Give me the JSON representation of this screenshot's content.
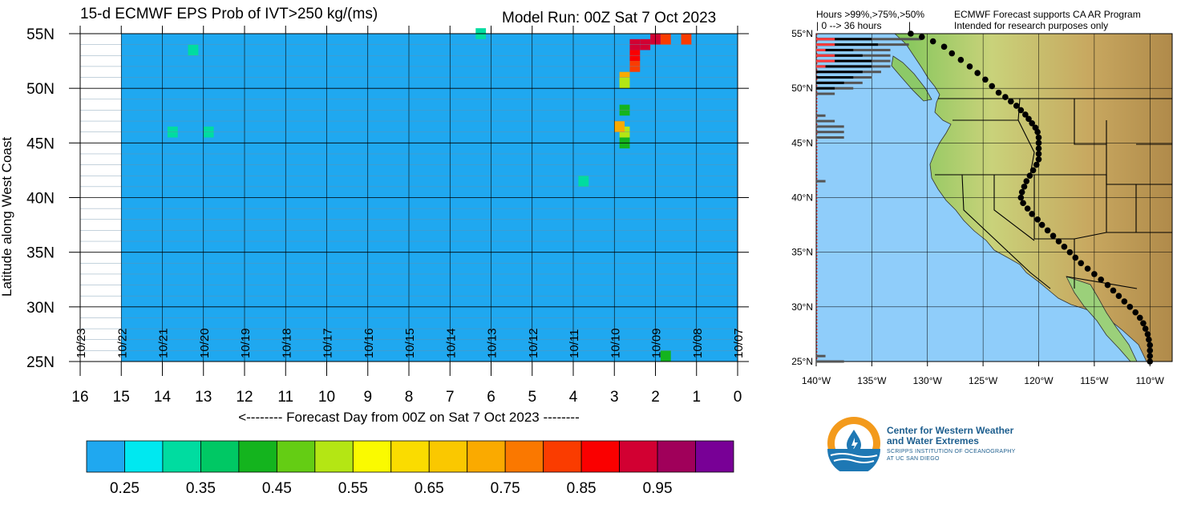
{
  "header": {
    "left_title": "15-d ECMWF EPS Prob of IVT>250 kg/(ms)",
    "right_title": "Model Run: 00Z Sat 7 Oct 2023"
  },
  "chart_data": [
    {
      "type": "heatmap",
      "title": "15-d ECMWF EPS Prob of IVT>250 kg/(ms)",
      "xlabel": "<-------- Forecast Day from 00Z on Sat 7 Oct 2023 --------",
      "ylabel": "Latitude along West Coast",
      "x_ticks": [
        "16",
        "15",
        "14",
        "13",
        "12",
        "11",
        "10",
        "9",
        "8",
        "7",
        "6",
        "5",
        "4",
        "3",
        "2",
        "1",
        "0"
      ],
      "xlim": [
        16,
        0
      ],
      "y_ticks": [
        "25N",
        "30N",
        "35N",
        "40N",
        "45N",
        "50N",
        "55N"
      ],
      "ylim": [
        25,
        55
      ],
      "grid": true,
      "date_labels": [
        "10/23",
        "10/22",
        "10/21",
        "10/20",
        "10/19",
        "10/18",
        "10/17",
        "10/16",
        "10/15",
        "10/14",
        "10/13",
        "10/12",
        "10/11",
        "10/10",
        "10/09",
        "10/08",
        "10/07"
      ],
      "date_label_days": [
        16,
        15,
        14,
        13,
        12,
        11,
        10,
        9,
        8,
        7,
        6,
        5,
        4,
        3,
        2,
        1,
        0
      ],
      "data_extent_days": [
        0,
        15
      ],
      "base_probability": 0.25,
      "cell_size": {
        "day": 0.125,
        "lat": 0.5
      },
      "features": [
        {
          "day": 2.5,
          "lat": 54.0,
          "p": 0.95
        },
        {
          "day": 2.25,
          "lat": 54.0,
          "p": 0.95
        },
        {
          "day": 2.0,
          "lat": 54.5,
          "p": 0.95
        },
        {
          "day": 1.75,
          "lat": 54.5,
          "p": 0.85
        },
        {
          "day": 2.5,
          "lat": 53.0,
          "p": 0.9
        },
        {
          "day": 2.5,
          "lat": 52.0,
          "p": 0.85
        },
        {
          "day": 2.75,
          "lat": 51.0,
          "p": 0.75
        },
        {
          "day": 2.75,
          "lat": 50.5,
          "p": 0.55
        },
        {
          "day": 1.25,
          "lat": 54.5,
          "p": 0.85
        },
        {
          "day": 2.75,
          "lat": 46.0,
          "p": 0.55
        },
        {
          "day": 2.875,
          "lat": 46.5,
          "p": 0.75
        },
        {
          "day": 2.75,
          "lat": 45.0,
          "p": 0.45
        },
        {
          "day": 2.75,
          "lat": 48.0,
          "p": 0.45
        },
        {
          "day": 3.75,
          "lat": 41.5,
          "p": 0.35
        },
        {
          "day": 12.875,
          "lat": 46.0,
          "p": 0.35
        },
        {
          "day": 13.75,
          "lat": 46.0,
          "p": 0.35
        },
        {
          "day": 13.25,
          "lat": 53.5,
          "p": 0.35
        },
        {
          "day": 6.25,
          "lat": 55.0,
          "p": 0.35
        },
        {
          "day": 1.75,
          "lat": 25.5,
          "p": 0.45
        }
      ]
    },
    {
      "type": "bar",
      "title": "Hours >99%,>75%,>50%",
      "subtitle": "| 0 --> 36 hours |",
      "orientation": "horizontal",
      "series": [
        {
          "name": ">99%",
          "color": "#ff3b3b"
        },
        {
          "name": ">75%",
          "color": "#000000"
        },
        {
          "name": ">50%",
          "color": "#555555"
        }
      ],
      "lat_ticks": [
        "25°N",
        "30°N",
        "35°N",
        "40°N",
        "45°N",
        "50°N",
        "55°N"
      ],
      "lon_ticks": [
        "140°W",
        "135°W",
        "130°W",
        "125°W",
        "120°W",
        "115°W",
        "110°W"
      ],
      "bars": [
        {
          "lat": 54.5,
          "h99": 6,
          "h75": 18,
          "h50": 34
        },
        {
          "lat": 54.0,
          "h99": 6,
          "h75": 20,
          "h50": 30
        },
        {
          "lat": 53.5,
          "h99": 3,
          "h75": 12,
          "h50": 24
        },
        {
          "lat": 53.0,
          "h99": 6,
          "h75": 15,
          "h50": 24
        },
        {
          "lat": 52.5,
          "h99": 6,
          "h75": 18,
          "h50": 24
        },
        {
          "lat": 52.0,
          "h99": 3,
          "h75": 18,
          "h50": 24
        },
        {
          "lat": 51.5,
          "h99": 0,
          "h75": 15,
          "h50": 21
        },
        {
          "lat": 51.0,
          "h99": 0,
          "h75": 12,
          "h50": 18
        },
        {
          "lat": 50.5,
          "h99": 0,
          "h75": 9,
          "h50": 15
        },
        {
          "lat": 50.0,
          "h99": 0,
          "h75": 6,
          "h50": 12
        },
        {
          "lat": 49.5,
          "h99": 0,
          "h75": 0,
          "h50": 6
        },
        {
          "lat": 47.5,
          "h99": 0,
          "h75": 0,
          "h50": 3
        },
        {
          "lat": 47.0,
          "h99": 0,
          "h75": 0,
          "h50": 6
        },
        {
          "lat": 46.5,
          "h99": 0,
          "h75": 0,
          "h50": 9
        },
        {
          "lat": 46.0,
          "h99": 0,
          "h75": 0,
          "h50": 9
        },
        {
          "lat": 45.5,
          "h99": 0,
          "h75": 0,
          "h50": 9
        },
        {
          "lat": 41.5,
          "h99": 0,
          "h75": 0,
          "h50": 3
        },
        {
          "lat": 25.5,
          "h99": 0,
          "h75": 0,
          "h50": 3
        },
        {
          "lat": 25.0,
          "h99": 0,
          "h75": 0,
          "h50": 9
        }
      ]
    }
  ],
  "colorbar": {
    "colors": [
      "#1fa8f0",
      "#00e8f0",
      "#00dca0",
      "#00c864",
      "#14b41e",
      "#64cd14",
      "#b4e614",
      "#fafa00",
      "#fadc00",
      "#fac800",
      "#faaa00",
      "#fa7800",
      "#fa3c00",
      "#fa0000",
      "#d20032",
      "#a0005a",
      "#780096"
    ],
    "labels": [
      "0.25",
      "0.35",
      "0.45",
      "0.55",
      "0.65",
      "0.75",
      "0.85",
      "0.95"
    ]
  },
  "map": {
    "header_left": "Hours >99%,>75%,>50%",
    "header_left_sub": "| 0 --> 36 hours          |",
    "header_right_1": "ECMWF Forecast supports CA AR Program",
    "header_right_2": "Intended for research purposes only"
  },
  "logo": {
    "line1": "Center for Western Weather",
    "line2": "and Water Extremes",
    "line3": "SCRIPPS INSTITUTION OF OCEANOGRAPHY",
    "line4": "AT UC SAN DIEGO"
  }
}
